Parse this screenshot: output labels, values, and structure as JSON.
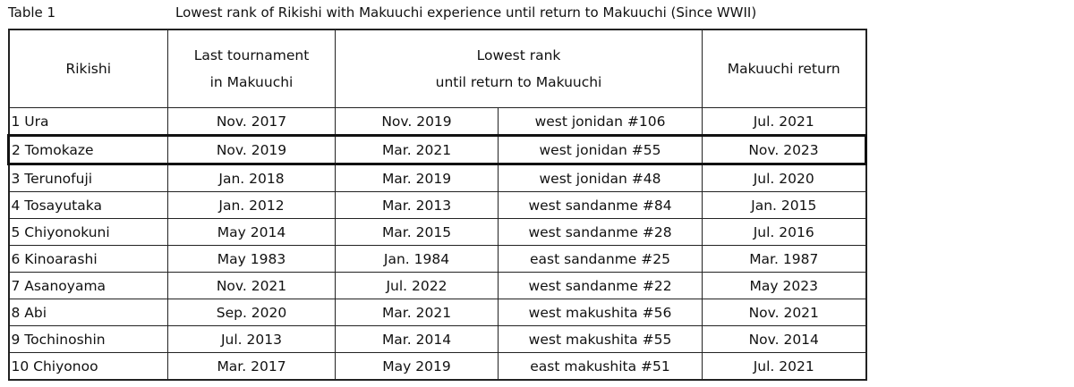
{
  "table_label": "Table 1",
  "title": "Lowest rank of Rikishi with Makuuchi experience until return to Makuuchi (Since WWII)",
  "headers": {
    "rikishi": "Rikishi",
    "last_line1": "Last tournament",
    "last_line2": "in Makuuchi",
    "lowest_line1": "Lowest rank",
    "lowest_line2": "until return to Makuuchi",
    "return": "Makuuchi return"
  },
  "highlighted_row": 1,
  "rows": [
    {
      "rikishi": "1 Ura",
      "last": "Nov. 2017",
      "lowest_date": "Nov. 2019",
      "lowest_rank": "west jonidan #106",
      "return": "Jul. 2021"
    },
    {
      "rikishi": "2 Tomokaze",
      "last": "Nov. 2019",
      "lowest_date": "Mar. 2021",
      "lowest_rank": "west jonidan #55",
      "return": "Nov. 2023"
    },
    {
      "rikishi": "3 Terunofuji",
      "last": "Jan. 2018",
      "lowest_date": "Mar. 2019",
      "lowest_rank": "west jonidan #48",
      "return": "Jul. 2020"
    },
    {
      "rikishi": "4 Tosayutaka",
      "last": "Jan. 2012",
      "lowest_date": "Mar. 2013",
      "lowest_rank": "west sandanme #84",
      "return": "Jan. 2015"
    },
    {
      "rikishi": "5 Chiyonokuni",
      "last": "May 2014",
      "lowest_date": "Mar. 2015",
      "lowest_rank": "west sandanme #28",
      "return": "Jul. 2016"
    },
    {
      "rikishi": "6 Kinoarashi",
      "last": "May 1983",
      "lowest_date": "Jan. 1984",
      "lowest_rank": "east sandanme #25",
      "return": "Mar. 1987"
    },
    {
      "rikishi": "7 Asanoyama",
      "last": "Nov. 2021",
      "lowest_date": "Jul. 2022",
      "lowest_rank": "west sandanme #22",
      "return": "May 2023"
    },
    {
      "rikishi": "8 Abi",
      "last": "Sep. 2020",
      "lowest_date": "Mar. 2021",
      "lowest_rank": "west makushita #56",
      "return": "Nov. 2021"
    },
    {
      "rikishi": "9 Tochinoshin",
      "last": "Jul. 2013",
      "lowest_date": "Mar. 2014",
      "lowest_rank": "west makushita #55",
      "return": "Nov. 2014"
    },
    {
      "rikishi": "10 Chiyonoo",
      "last": "Mar. 2017",
      "lowest_date": "May 2019",
      "lowest_rank": "east makushita #51",
      "return": "Jul. 2021"
    }
  ]
}
